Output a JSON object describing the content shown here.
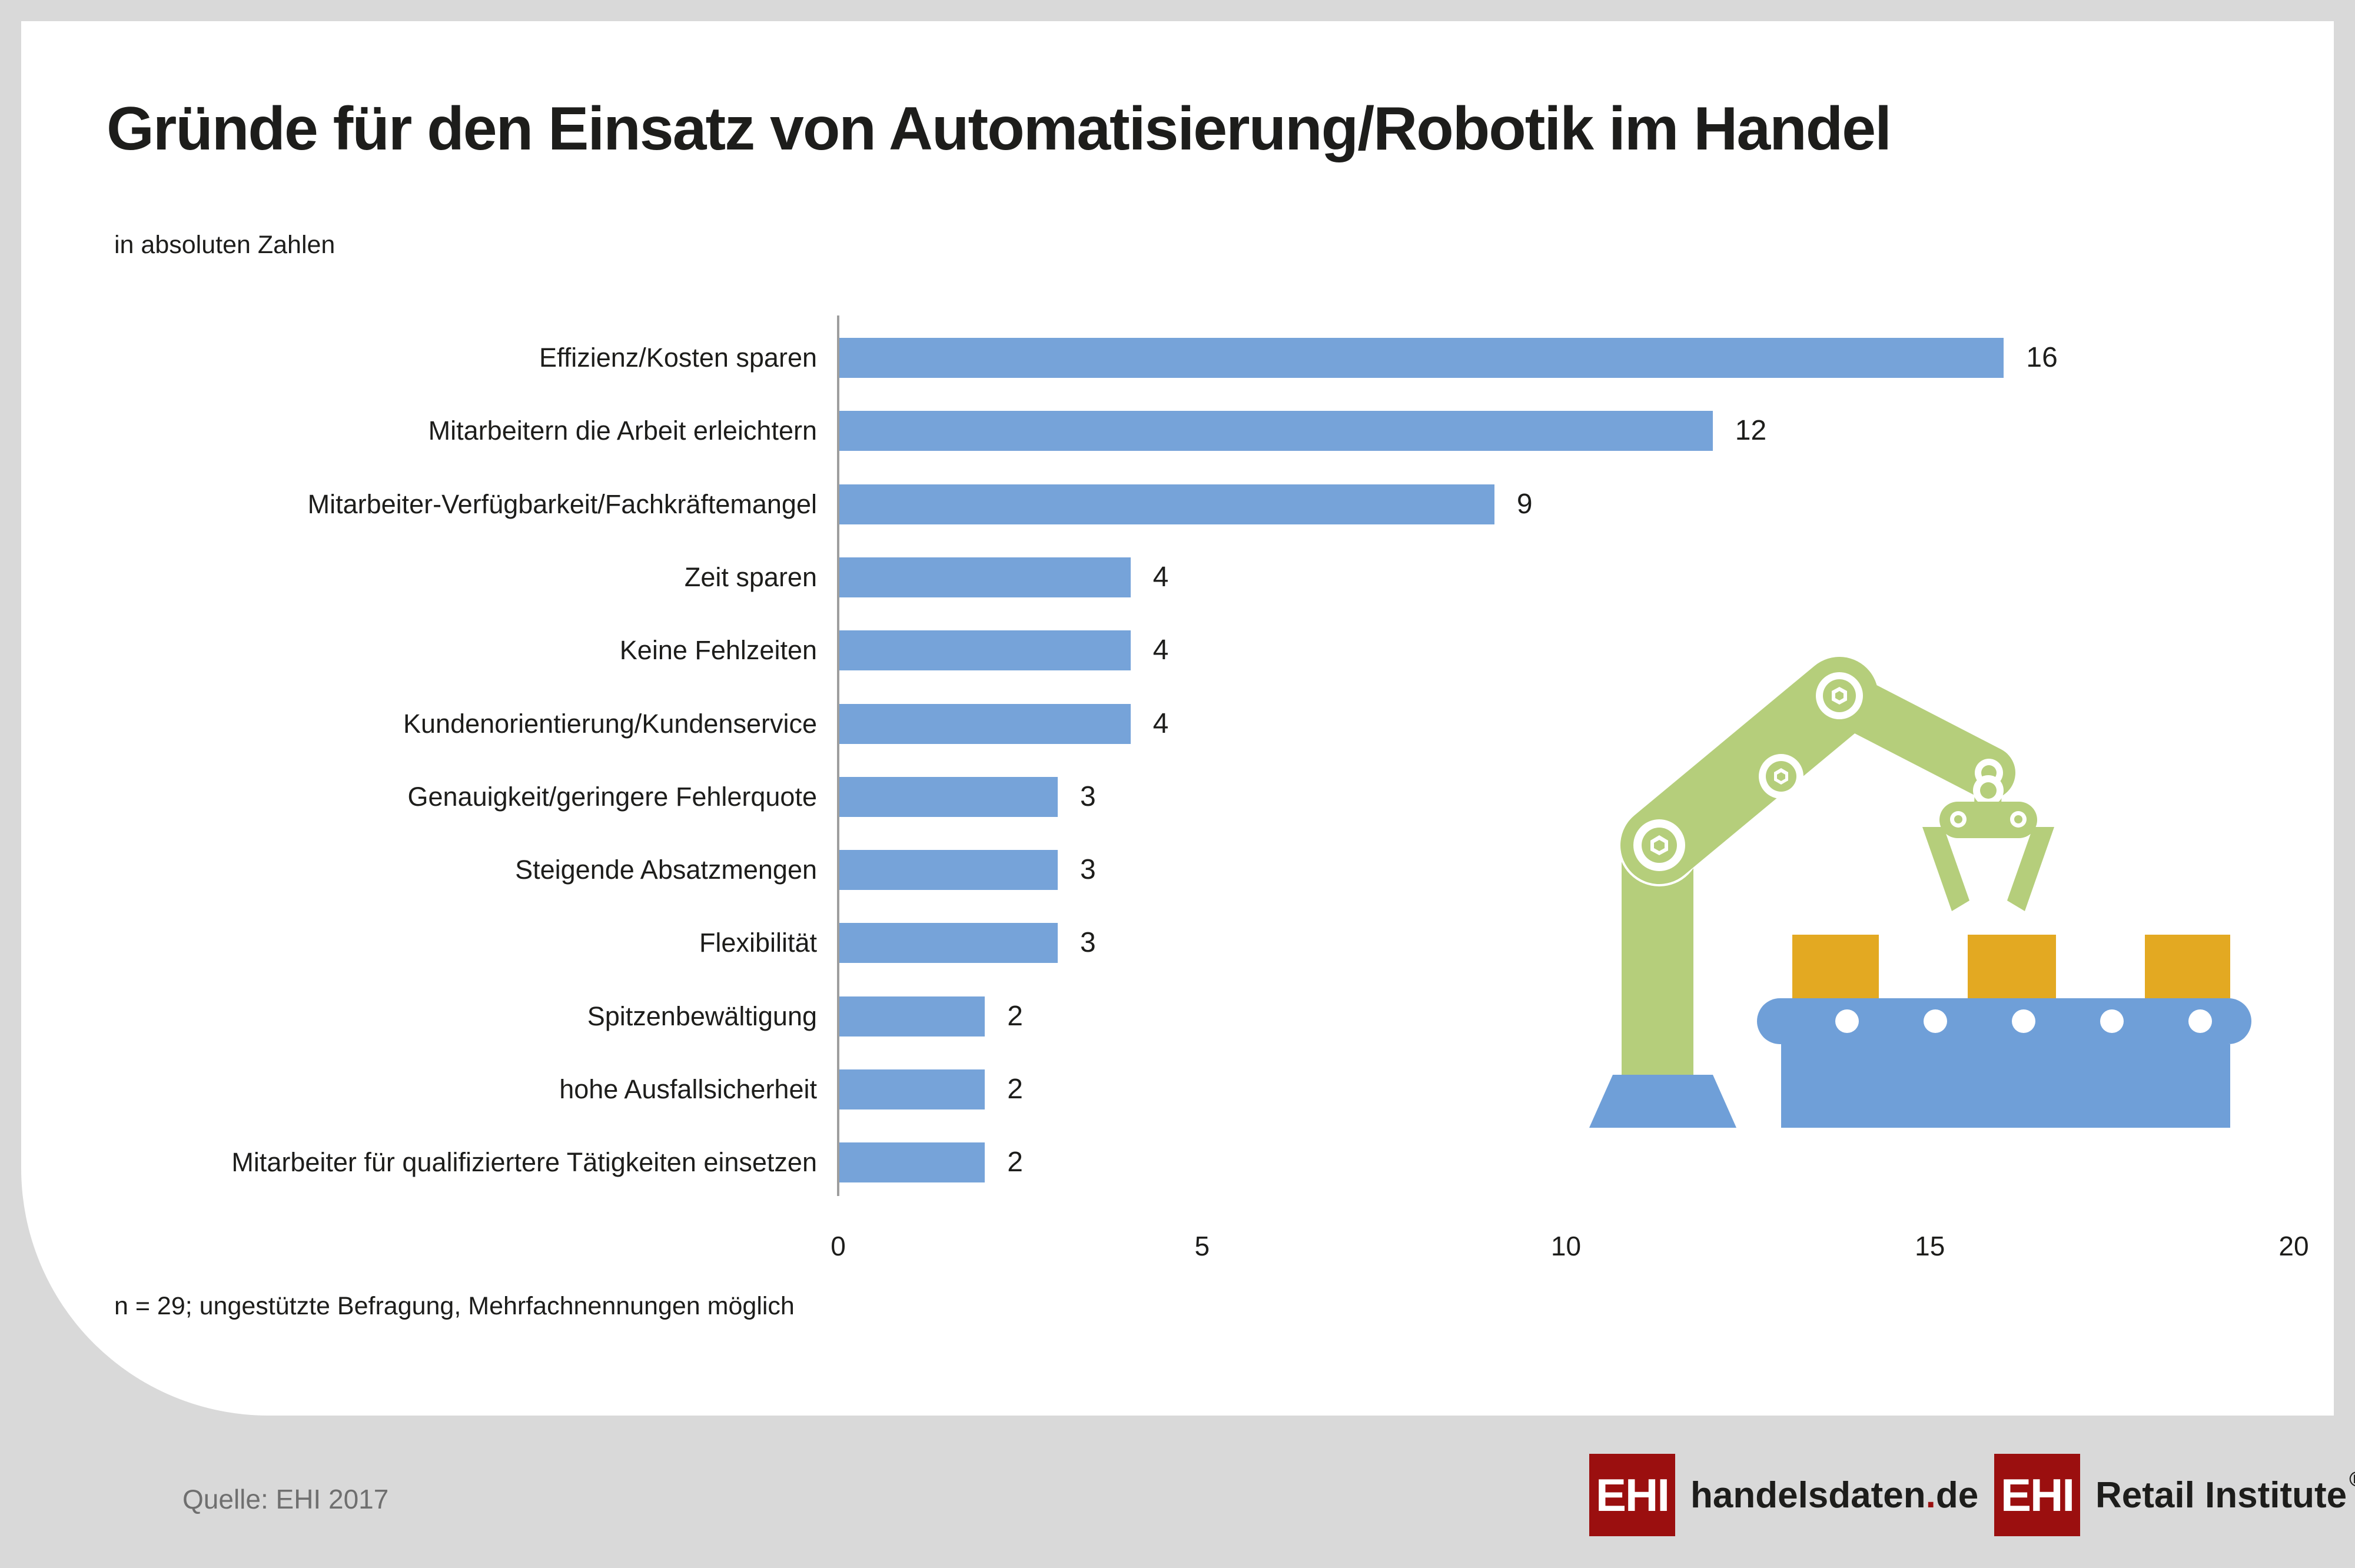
{
  "header": {
    "subtitle": "in absoluten Zahlen"
  },
  "chart_data": {
    "type": "bar",
    "orientation": "horizontal",
    "title": "Gründe für den Einsatz von Automatisierung/Robotik im Handel",
    "unit_note": "in absoluten Zahlen",
    "categories": [
      "Effizienz/Kosten sparen",
      "Mitarbeitern die Arbeit erleichtern",
      "Mitarbeiter-Verfügbarkeit/Fachkräftemangel",
      "Zeit sparen",
      "Keine Fehlzeiten",
      "Kundenorientierung/Kundenservice",
      "Genauigkeit/geringere Fehlerquote",
      "Steigende Absatzmengen",
      "Flexibilität",
      "Spitzenbewältigung",
      "hohe Ausfallsicherheit",
      "Mitarbeiter für qualifiziertere Tätigkeiten einsetzen"
    ],
    "values": [
      16,
      12,
      9,
      4,
      4,
      4,
      3,
      3,
      3,
      2,
      2,
      2
    ],
    "xlabel": "",
    "ylabel": "",
    "xlim": [
      0,
      20
    ],
    "xticks": [
      0,
      5,
      10,
      15,
      20
    ],
    "grid": false,
    "legend": false,
    "bar_color": "#76a3d9"
  },
  "footnote": "n = 29; ungestützte Befragung, Mehrfachnennungen möglich",
  "footer": {
    "source": "Quelle: EHI 2017",
    "logo_handelsdaten": {
      "box": "EHI",
      "name": "handelsdaten",
      "dot": ".",
      "tld": "de"
    },
    "logo_retail": {
      "box": "EHI",
      "name": "Retail Institute",
      "registered": "®"
    }
  },
  "colors": {
    "background": "#d9d9d9",
    "card": "#ffffff",
    "bar": "#76a3d9",
    "robot_green": "#b5ce7b",
    "robot_blue": "#6f9fd8",
    "box_orange": "#e3a922",
    "logo_red": "#9b0f0f",
    "axis": "#9e9e9e",
    "text": "#1d1d1b",
    "source_text": "#6f6f6f"
  }
}
